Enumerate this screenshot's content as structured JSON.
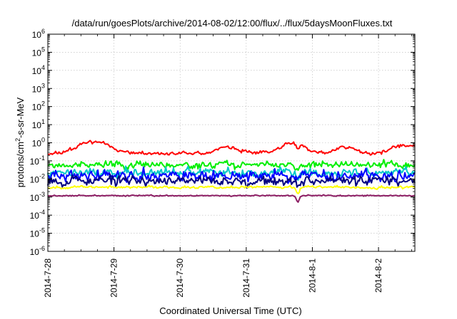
{
  "chart_data": {
    "type": "line",
    "title": "/data/run/goesPlots/archive/2014-08-02/12:00/flux/../flux/5daysMoonFluxes.txt",
    "xlabel": "Coordinated Universal Time (UTC)",
    "ylabel_main": "protons/cm",
    "ylabel_sup": "2",
    "ylabel_rest": "-s-sr-MeV",
    "y_scale": "log",
    "ylim_exponents": [
      -6,
      6
    ],
    "y_ticks": [
      {
        "base": "10",
        "exp": "6"
      },
      {
        "base": "10",
        "exp": "5"
      },
      {
        "base": "10",
        "exp": "4"
      },
      {
        "base": "10",
        "exp": "3"
      },
      {
        "base": "10",
        "exp": "2"
      },
      {
        "base": "10",
        "exp": "1"
      },
      {
        "base": "10",
        "exp": "0"
      },
      {
        "base": "10",
        "exp": "-1"
      },
      {
        "base": "10",
        "exp": "-2"
      },
      {
        "base": "10",
        "exp": "-3"
      },
      {
        "base": "10",
        "exp": "-4"
      },
      {
        "base": "10",
        "exp": "-5"
      },
      {
        "base": "10",
        "exp": "-6"
      }
    ],
    "x_ticks": [
      "2014-7-28",
      "2014-7-29",
      "2014-7-30",
      "2014-7-31",
      "2014-8-1",
      "2014-8-2"
    ],
    "x_range_days": [
      0,
      5.55
    ],
    "grid": true,
    "legend": "none",
    "series": [
      {
        "color": "#ff0000",
        "base": 0.25,
        "amp": 0.12,
        "seed": 11,
        "bumps": [
          [
            0.7,
            0.35,
            0.7
          ],
          [
            2.7,
            0.25,
            0.35
          ],
          [
            3.7,
            0.25,
            0.6
          ],
          [
            4.5,
            0.2,
            0.4
          ],
          [
            5.4,
            0.3,
            0.45
          ]
        ]
      },
      {
        "color": "#00ee00",
        "base": 0.06,
        "amp": 0.22,
        "seed": 23
      },
      {
        "color": "#00c8c8",
        "base": 0.022,
        "amp": 0.3,
        "seed": 37
      },
      {
        "color": "#0000ff",
        "base": 0.015,
        "amp": 0.35,
        "seed": 41
      },
      {
        "color": "#000080",
        "base": 0.008,
        "amp": 0.3,
        "seed": 53
      },
      {
        "color": "#ffff00",
        "base": 0.0035,
        "amp": 0.08,
        "seed": 67
      },
      {
        "color": "#8b1c62",
        "base": 0.0012,
        "amp": 0.04,
        "seed": 79
      }
    ]
  }
}
